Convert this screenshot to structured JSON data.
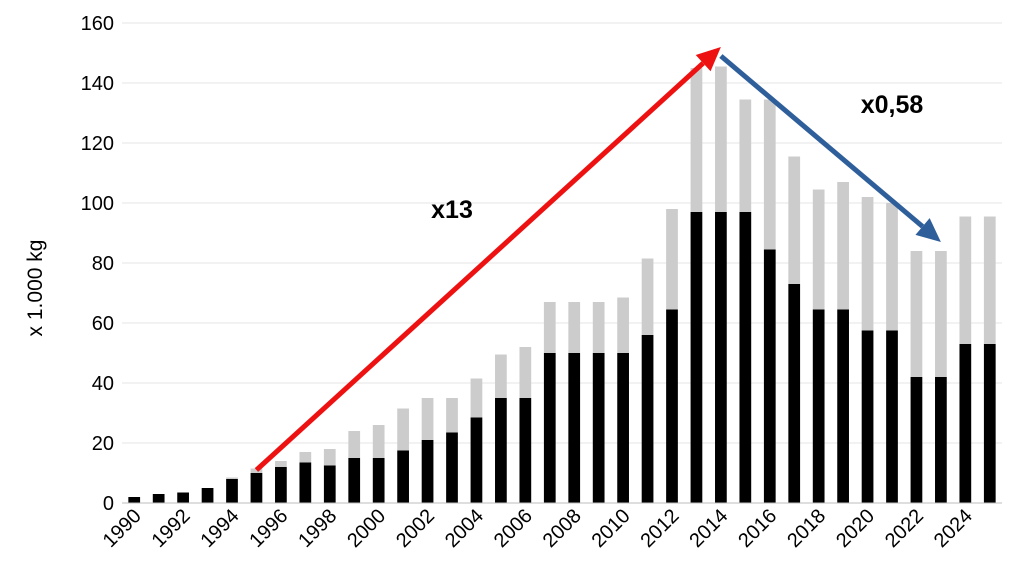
{
  "chart_data": {
    "type": "bar",
    "stacked": true,
    "ylabel": "x 1.000 kg",
    "xlabel": "",
    "ylim": [
      0,
      160
    ],
    "yticks": [
      0,
      20,
      40,
      60,
      80,
      100,
      120,
      140,
      160
    ],
    "grid": true,
    "legend": "none",
    "categories": [
      1990,
      1991,
      1992,
      1993,
      1994,
      1995,
      1996,
      1997,
      1998,
      1999,
      2000,
      2001,
      2002,
      2003,
      2004,
      2005,
      2006,
      2007,
      2008,
      2009,
      2010,
      2011,
      2012,
      2013,
      2014,
      2015,
      2016,
      2017,
      2018,
      2019,
      2020,
      2021,
      2022,
      2023,
      2024,
      2025
    ],
    "xtick_labels": [
      "1990",
      "1992",
      "1994",
      "1996",
      "1998",
      "2000",
      "2002",
      "2004",
      "2006",
      "2008",
      "2010",
      "2012",
      "2014",
      "2016",
      "2018",
      "2020",
      "2022",
      "2024"
    ],
    "series": [
      {
        "color": "#000000",
        "values": [
          2,
          3,
          3.5,
          5,
          8,
          10,
          12,
          13.5,
          12.5,
          15,
          15,
          17.5,
          21,
          23.5,
          28.5,
          35,
          35,
          50,
          50,
          50,
          50,
          56,
          64.5,
          97,
          97,
          97,
          84.5,
          73,
          64.5,
          64.5,
          57.5,
          57.5,
          42,
          42,
          53,
          53
        ]
      },
      {
        "color": "#cccccc",
        "values": [
          0,
          0,
          0,
          0,
          0.5,
          1.5,
          2,
          3.5,
          5.5,
          9,
          11,
          14,
          14,
          11.5,
          13,
          14.5,
          17,
          17,
          17,
          17,
          18.5,
          25.5,
          33.5,
          48,
          48.5,
          37.5,
          50,
          42.5,
          40,
          42.5,
          44.5,
          42.5,
          42,
          42,
          42.5,
          42.5
        ]
      }
    ],
    "annotations": [
      {
        "text": "x13",
        "arrow_from": [
          1995,
          11
        ],
        "arrow_to": [
          2014,
          152
        ],
        "color": "#ee1111",
        "label_at": [
          2003,
          95
        ]
      },
      {
        "text": "x0,58",
        "arrow_from": [
          2014,
          149
        ],
        "arrow_to": [
          2023,
          87
        ],
        "color": "#2f5f9a",
        "label_at": [
          2021,
          130
        ]
      }
    ]
  }
}
